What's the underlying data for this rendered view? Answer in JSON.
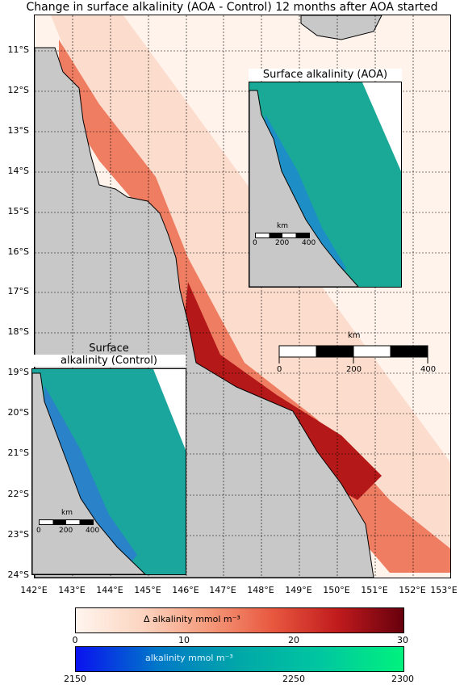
{
  "title": "Change in surface alkalinity (AOA - Control) 12 months after AOA started",
  "colors": {
    "land": "#c8c8c8",
    "ocean": "#fff3ec",
    "plume_light": "#f9c3ae",
    "plume_mid": "#ec6a4d",
    "plume_dark": "#b51818",
    "inset_ocean": "#10a8a0",
    "inset_shelf": "#2d7ad6"
  },
  "map": {
    "lat_labels": [
      "11°S",
      "12°S",
      "13°S",
      "14°S",
      "15°S",
      "16°S",
      "17°S",
      "18°S",
      "19°S",
      "20°S",
      "21°S",
      "22°S",
      "23°S",
      "24°S"
    ],
    "lon_labels": [
      "142°E",
      "143°E",
      "144°E",
      "145°E",
      "146°E",
      "147°E",
      "148°E",
      "149°E",
      "150°E",
      "151°E",
      "152°E",
      "153°E"
    ],
    "scalebar": {
      "unit": "km",
      "ticks": [
        "0",
        "200",
        "400"
      ]
    }
  },
  "insets": {
    "aoa": {
      "title": "Surface alkalinity (AOA)",
      "scalebar_unit": "km",
      "ticks": [
        "0",
        "200",
        "400"
      ]
    },
    "control": {
      "title_line1": "Surface",
      "title_line2": "alkalinity (Control)",
      "scalebar_unit": "km",
      "ticks": [
        "0",
        "200",
        "400"
      ]
    }
  },
  "colorbars": {
    "delta": {
      "label": "Δ alkalinity mmol m⁻³",
      "ticks": [
        "0",
        "10",
        "20",
        "30"
      ],
      "min": 0,
      "max": 30
    },
    "alkalinity": {
      "label": "alkalinity mmol m⁻³",
      "ticks": [
        "2150",
        "2250",
        "2300"
      ],
      "min": 2150,
      "max": 2300
    }
  }
}
